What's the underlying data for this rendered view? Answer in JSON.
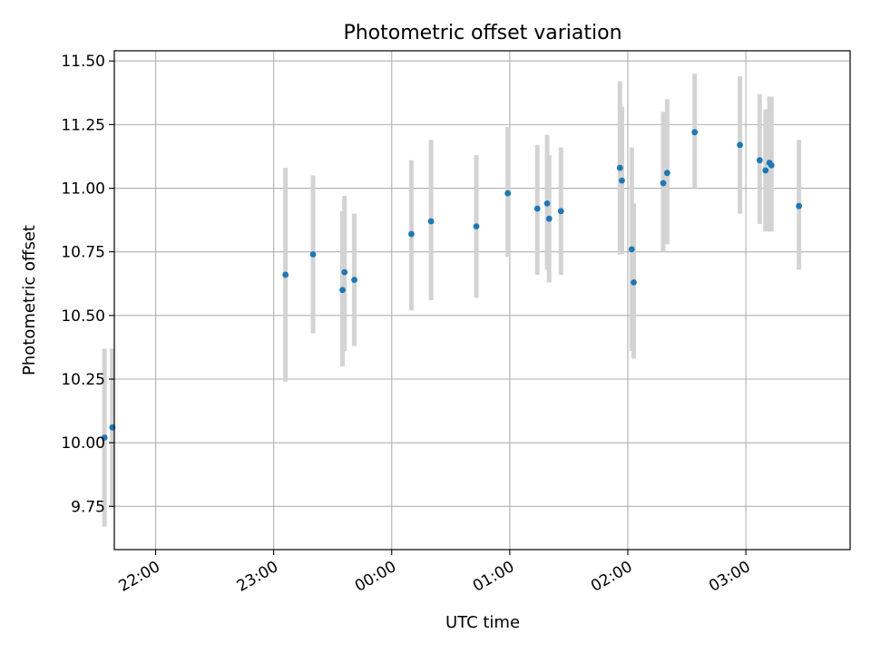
{
  "chart_data": {
    "type": "scatter",
    "title": "Photometric offset variation",
    "xlabel": "UTC time",
    "ylabel": "Photometric offset",
    "x_ticks": [
      "22:00",
      "23:00",
      "00:00",
      "01:00",
      "02:00",
      "03:00"
    ],
    "y_ticks": [
      "9.75",
      "10.00",
      "10.25",
      "10.50",
      "10.75",
      "11.00",
      "11.25",
      "11.50"
    ],
    "xlim": [
      "21:39",
      "03:53"
    ],
    "ylim": [
      9.58,
      11.54
    ],
    "grid": true,
    "colors": {
      "points": "#1f77b4",
      "error_bars": "#d3d3d3",
      "grid": "#b0b0b0"
    },
    "series": [
      {
        "points": [
          {
            "x": "21:34",
            "y": 10.02,
            "y_lower": 9.67,
            "y_upper": 10.37
          },
          {
            "x": "21:38",
            "y": 10.06,
            "y_lower": 9.75,
            "y_upper": 10.37
          },
          {
            "x": "23:06",
            "y": 10.66,
            "y_lower": 10.24,
            "y_upper": 11.08
          },
          {
            "x": "23:20",
            "y": 10.74,
            "y_lower": 10.43,
            "y_upper": 11.05
          },
          {
            "x": "23:35",
            "y": 10.6,
            "y_lower": 10.3,
            "y_upper": 10.91
          },
          {
            "x": "23:36",
            "y": 10.67,
            "y_lower": 10.36,
            "y_upper": 10.97
          },
          {
            "x": "23:41",
            "y": 10.64,
            "y_lower": 10.38,
            "y_upper": 10.9
          },
          {
            "x": "00:10",
            "y": 10.82,
            "y_lower": 10.52,
            "y_upper": 11.11
          },
          {
            "x": "00:20",
            "y": 10.87,
            "y_lower": 10.56,
            "y_upper": 11.19
          },
          {
            "x": "00:43",
            "y": 10.85,
            "y_lower": 10.57,
            "y_upper": 11.13
          },
          {
            "x": "00:59",
            "y": 10.98,
            "y_lower": 10.73,
            "y_upper": 11.24
          },
          {
            "x": "01:14",
            "y": 10.92,
            "y_lower": 10.66,
            "y_upper": 11.17
          },
          {
            "x": "01:19",
            "y": 10.94,
            "y_lower": 10.68,
            "y_upper": 11.21
          },
          {
            "x": "01:20",
            "y": 10.88,
            "y_lower": 10.63,
            "y_upper": 11.13
          },
          {
            "x": "01:26",
            "y": 10.91,
            "y_lower": 10.66,
            "y_upper": 11.16
          },
          {
            "x": "01:56",
            "y": 11.08,
            "y_lower": 10.74,
            "y_upper": 11.42
          },
          {
            "x": "01:57",
            "y": 11.03,
            "y_lower": 10.74,
            "y_upper": 11.32
          },
          {
            "x": "02:02",
            "y": 10.76,
            "y_lower": 10.36,
            "y_upper": 11.16
          },
          {
            "x": "02:03",
            "y": 10.63,
            "y_lower": 10.33,
            "y_upper": 10.94
          },
          {
            "x": "02:18",
            "y": 11.02,
            "y_lower": 10.75,
            "y_upper": 11.3
          },
          {
            "x": "02:20",
            "y": 11.06,
            "y_lower": 10.78,
            "y_upper": 11.35
          },
          {
            "x": "02:34",
            "y": 11.22,
            "y_lower": 11.0,
            "y_upper": 11.45
          },
          {
            "x": "02:57",
            "y": 11.17,
            "y_lower": 10.9,
            "y_upper": 11.44
          },
          {
            "x": "03:07",
            "y": 11.11,
            "y_lower": 10.86,
            "y_upper": 11.37
          },
          {
            "x": "03:10",
            "y": 11.07,
            "y_lower": 10.83,
            "y_upper": 11.31
          },
          {
            "x": "03:12",
            "y": 11.1,
            "y_lower": 10.83,
            "y_upper": 11.36
          },
          {
            "x": "03:13",
            "y": 11.09,
            "y_lower": 10.83,
            "y_upper": 11.36
          },
          {
            "x": "03:27",
            "y": 10.93,
            "y_lower": 10.68,
            "y_upper": 11.19
          }
        ]
      }
    ]
  }
}
